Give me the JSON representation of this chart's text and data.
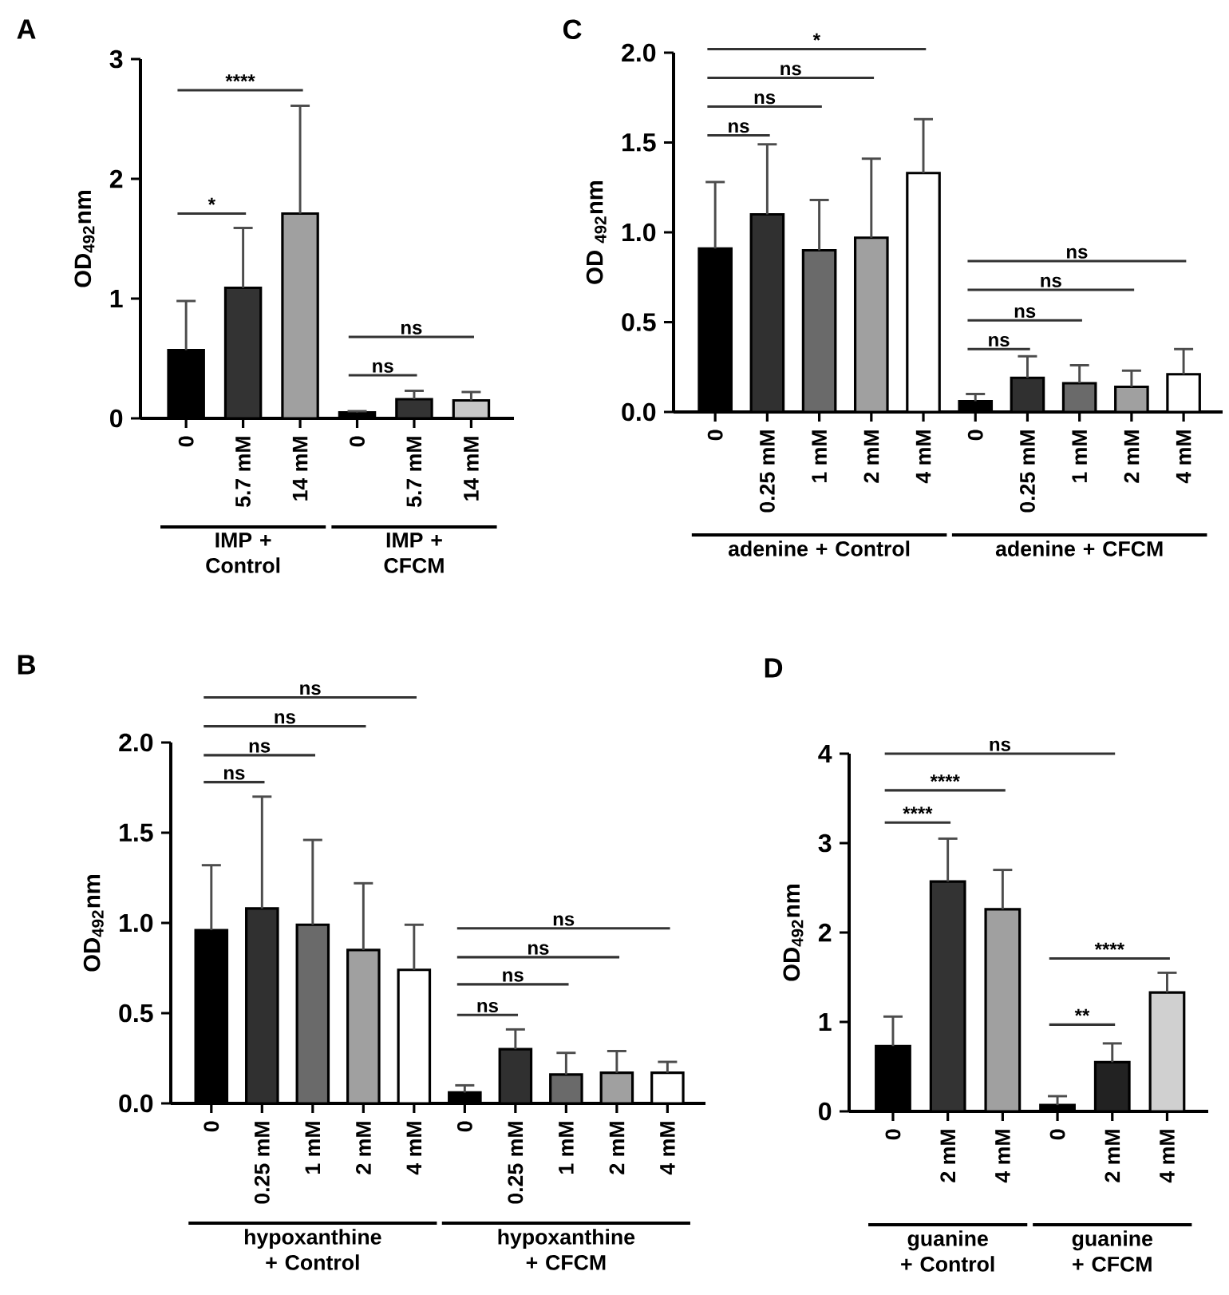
{
  "chart_data": [
    {
      "type": "bar",
      "title": "A",
      "ylabel": "OD$_{492}$nm",
      "categories": [
        "0",
        "5.7 mM",
        "14 mM",
        "0",
        "5.7 mM",
        "14 mM"
      ],
      "values": [
        0.57,
        1.09,
        1.71,
        0.05,
        0.16,
        0.15
      ],
      "errors": [
        [
          0.57,
          0.98
        ],
        [
          1.09,
          1.59
        ],
        [
          1.71,
          2.61
        ],
        [
          0.05,
          0.06
        ],
        [
          0.16,
          0.23
        ],
        [
          0.15,
          0.22
        ]
      ],
      "colors": [
        "#000000",
        "#333333",
        "#a0a0a0",
        "#000000",
        "#333333",
        "#c8c8c8"
      ],
      "ylim": [
        0,
        3
      ],
      "yticks": [
        0,
        1,
        2,
        3
      ],
      "annotations": [
        "IMP + Control",
        "IMP + CFCM",
        "*",
        "****",
        "ns",
        "ns"
      ]
    },
    {
      "type": "bar",
      "title": "C",
      "ylabel": "OD $_{492}$nm",
      "categories": [
        "0",
        "0.25 mM",
        "1 mM",
        "2 mM",
        "4 mM",
        "0",
        "0.25 mM",
        "1 mM",
        "2 mM",
        "4 mM"
      ],
      "values": [
        0.91,
        1.1,
        0.9,
        0.97,
        1.33,
        0.06,
        0.19,
        0.16,
        0.14,
        0.21
      ],
      "errors": [
        [
          0.91,
          1.28
        ],
        [
          1.1,
          1.49
        ],
        [
          0.9,
          1.18
        ],
        [
          0.97,
          1.41
        ],
        [
          1.33,
          1.63
        ],
        [
          0.06,
          0.1
        ],
        [
          0.19,
          0.31
        ],
        [
          0.16,
          0.26
        ],
        [
          0.14,
          0.23
        ],
        [
          0.21,
          0.35
        ]
      ],
      "colors": [
        "#000000",
        "#303030",
        "#6a6a6a",
        "#a0a0a0",
        "#ffffff",
        "#000000",
        "#303030",
        "#6a6a6a",
        "#a0a0a0",
        "#ffffff"
      ],
      "ylim": [
        0,
        2
      ],
      "yticks": [
        {
          "value": 0,
          "label": "0.0"
        },
        0.5,
        {
          "value": 1,
          "label": "1.0"
        },
        1.5,
        {
          "value": 2,
          "label": "2.0"
        }
      ],
      "annotations": [
        "adenine + Control",
        "adenine + CFCM",
        "ns",
        "ns",
        "ns",
        "*",
        "ns",
        "ns",
        "ns",
        "ns"
      ]
    },
    {
      "type": "bar",
      "title": "B",
      "ylabel": "OD$_{492}$nm",
      "categories": [
        "0",
        "0.25 mM",
        "1 mM",
        "2 mM",
        "4 mM",
        "0",
        "0.25 mM",
        "1 mM",
        "2 mM",
        "4 mM"
      ],
      "values": [
        0.96,
        1.08,
        0.99,
        0.85,
        0.74,
        0.06,
        0.3,
        0.16,
        0.17,
        0.17
      ],
      "errors": [
        [
          0.96,
          1.32
        ],
        [
          1.08,
          1.7
        ],
        [
          0.99,
          1.46
        ],
        [
          0.85,
          1.22
        ],
        [
          0.74,
          0.99
        ],
        [
          0.06,
          0.1
        ],
        [
          0.3,
          0.41
        ],
        [
          0.16,
          0.28
        ],
        [
          0.17,
          0.29
        ],
        [
          0.17,
          0.23
        ]
      ],
      "colors": [
        "#000000",
        "#303030",
        "#6a6a6a",
        "#a0a0a0",
        "#ffffff",
        "#000000",
        "#303030",
        "#6a6a6a",
        "#a0a0a0",
        "#ffffff"
      ],
      "ylim": [
        0,
        2
      ],
      "yticks": [
        {
          "value": 0,
          "label": "0.0"
        },
        0.5,
        {
          "value": 1,
          "label": "1.0"
        },
        1.5,
        {
          "value": 2,
          "label": "2.0"
        }
      ],
      "annotations": [
        "hypoxanthine + Control",
        "hypoxanthine + CFCM",
        "ns",
        "ns",
        "ns",
        "ns",
        "ns",
        "ns",
        "ns",
        "ns"
      ]
    },
    {
      "type": "bar",
      "title": "D",
      "ylabel": "OD$_{492}$nm",
      "categories": [
        "0",
        "2 mM",
        "4 mM",
        "0",
        "2 mM",
        "4 mM"
      ],
      "values": [
        0.73,
        2.57,
        2.26,
        0.07,
        0.55,
        1.33
      ],
      "errors": [
        [
          0.73,
          1.06
        ],
        [
          2.57,
          3.05
        ],
        [
          2.26,
          2.7
        ],
        [
          0.07,
          0.17
        ],
        [
          0.55,
          0.76
        ],
        [
          1.33,
          1.55
        ]
      ],
      "colors": [
        "#000000",
        "#333333",
        "#a0a0a0",
        "#000000",
        "#222222",
        "#d0d0d0"
      ],
      "ylim": [
        0,
        4
      ],
      "yticks": [
        0,
        1,
        2,
        3,
        4
      ],
      "annotations": [
        "guanine + Control",
        "guanine + CFCM",
        "****",
        "****",
        "ns",
        "**",
        "****"
      ]
    }
  ]
}
